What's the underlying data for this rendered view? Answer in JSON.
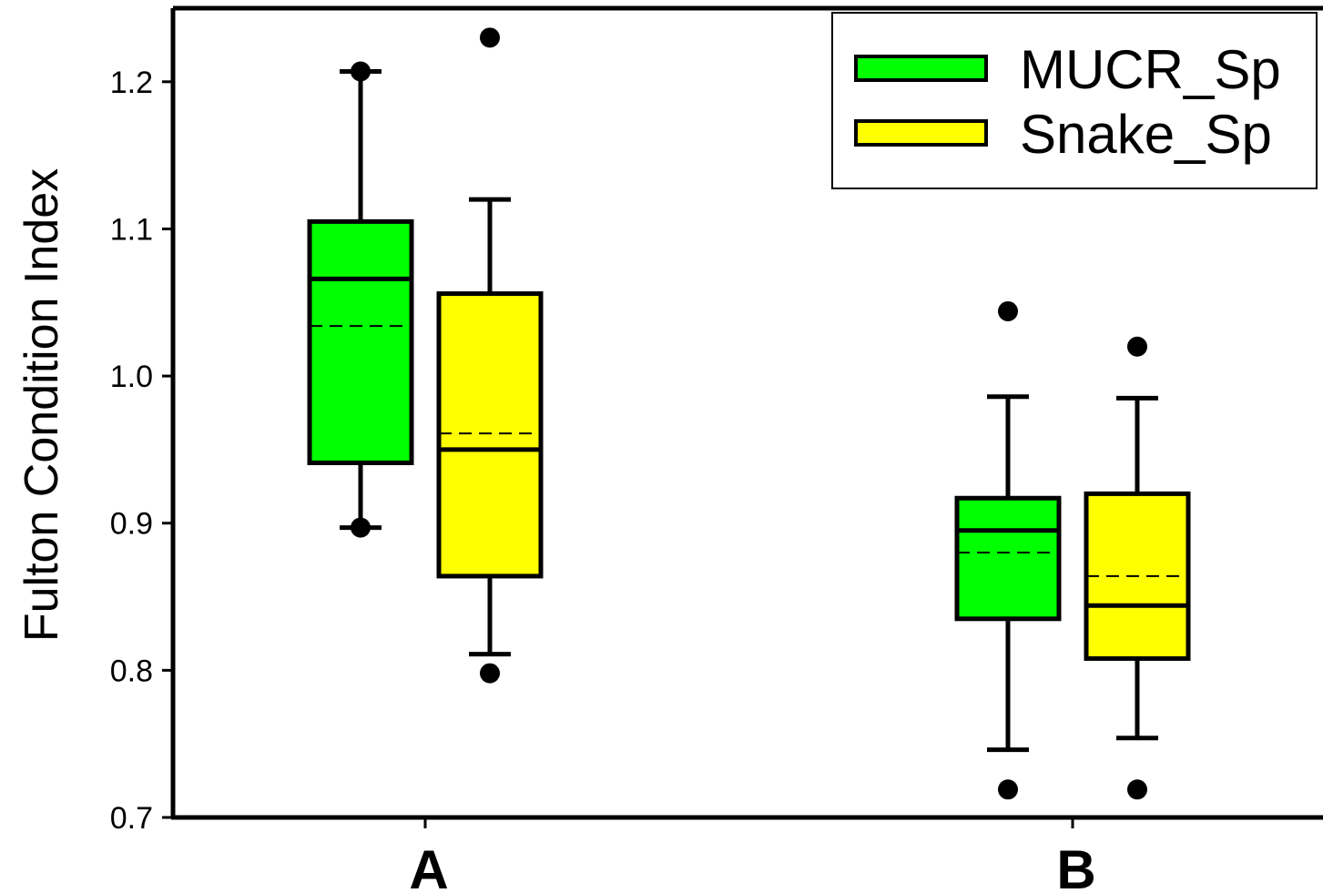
{
  "chart_data": {
    "type": "box",
    "ylabel": "Fulton Condition Index",
    "ylim": [
      0.7,
      1.25
    ],
    "yticks": [
      0.7,
      0.8,
      0.9,
      1.0,
      1.1,
      1.2
    ],
    "ytick_labels": [
      "0.7",
      "0.8",
      "0.9",
      "1.0",
      "1.1",
      "1.2"
    ],
    "categories": [
      "A",
      "B"
    ],
    "legend_position": "top-right",
    "series": [
      {
        "name": "MUCR_Sp",
        "color": "#00ff00",
        "boxes": [
          {
            "whisker_low": 0.897,
            "q1": 0.941,
            "median": 1.066,
            "mean": 1.034,
            "q3": 1.105,
            "whisker_high": 1.207,
            "outliers": [
              0.897,
              1.207
            ]
          },
          {
            "whisker_low": 0.746,
            "q1": 0.835,
            "median": 0.895,
            "mean": 0.88,
            "q3": 0.917,
            "whisker_high": 0.986,
            "outliers": [
              0.719,
              1.044
            ]
          }
        ]
      },
      {
        "name": "Snake_Sp",
        "color": "#ffff00",
        "boxes": [
          {
            "whisker_low": 0.811,
            "q1": 0.864,
            "median": 0.95,
            "mean": 0.961,
            "q3": 1.056,
            "whisker_high": 1.12,
            "outliers": [
              0.798,
              1.23
            ]
          },
          {
            "whisker_low": 0.754,
            "q1": 0.808,
            "median": 0.844,
            "mean": 0.864,
            "q3": 0.92,
            "whisker_high": 0.985,
            "outliers": [
              0.719,
              1.02
            ]
          }
        ]
      }
    ]
  }
}
